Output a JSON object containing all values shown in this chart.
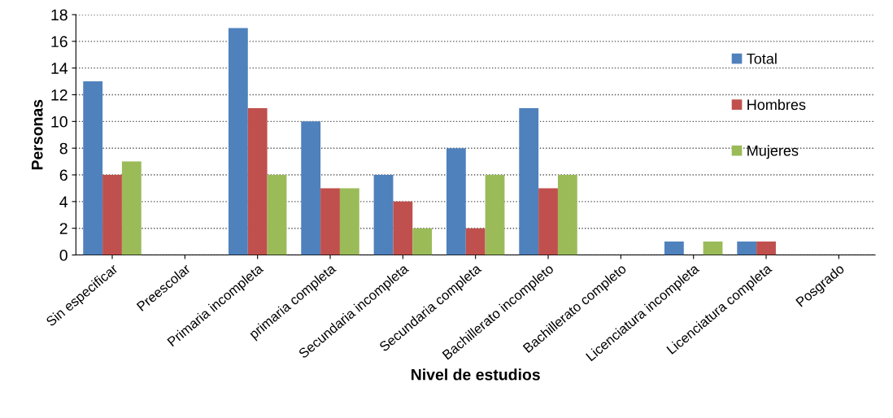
{
  "chart_data": {
    "type": "bar",
    "xlabel": "Nivel de estudios",
    "ylabel": "Personas",
    "categories": [
      "Sin especificar",
      "Preescolar",
      "Primaria incompleta",
      "primaria completa",
      "Secundaria incompleta",
      "Secundaria completa",
      "Bachillerato incompleto",
      "Bachillerato completo",
      "Licenciatura incompleta",
      "Licenciatura completa",
      "Posgrado"
    ],
    "series": [
      {
        "name": "Total",
        "color": "#4f81bd",
        "values": [
          13,
          0,
          17,
          10,
          6,
          8,
          11,
          0,
          1,
          1,
          0
        ]
      },
      {
        "name": "Hombres",
        "color": "#c0504d",
        "values": [
          6,
          0,
          11,
          5,
          4,
          2,
          5,
          0,
          0,
          1,
          0
        ]
      },
      {
        "name": "Mujeres",
        "color": "#9bbb59",
        "values": [
          7,
          0,
          6,
          5,
          2,
          6,
          6,
          0,
          1,
          0,
          0
        ]
      }
    ],
    "ylim": [
      0,
      18
    ],
    "yticks": [
      0,
      2,
      4,
      6,
      8,
      10,
      12,
      14,
      16,
      18
    ],
    "grid": "y",
    "legend": "right"
  }
}
